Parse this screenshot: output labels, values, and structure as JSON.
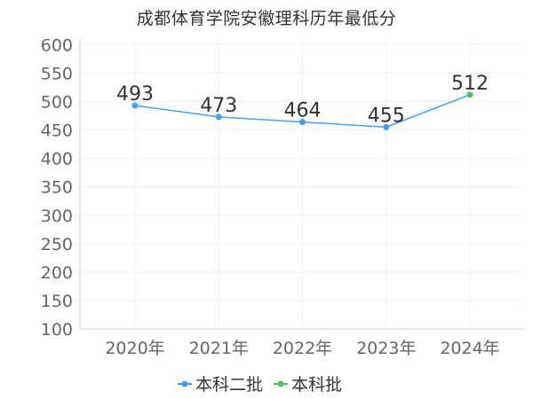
{
  "chart_data": {
    "type": "line",
    "title": "成都体育学院安徽理科历年最低分",
    "categories": [
      "2020年",
      "2021年",
      "2022年",
      "2023年",
      "2024年"
    ],
    "values": [
      493,
      473,
      464,
      455,
      512
    ],
    "batch_index": [
      0,
      0,
      0,
      0,
      1
    ],
    "series_names": [
      "本科二批",
      "本科批"
    ],
    "series_colors": [
      "#3fa1f5",
      "#4cc35e"
    ],
    "line_color": "#3fa1f5",
    "yticks": [
      100,
      150,
      200,
      250,
      300,
      350,
      400,
      450,
      500,
      550,
      600
    ],
    "ylim": [
      100,
      610
    ],
    "grid": true,
    "legend_position": "bottom"
  }
}
